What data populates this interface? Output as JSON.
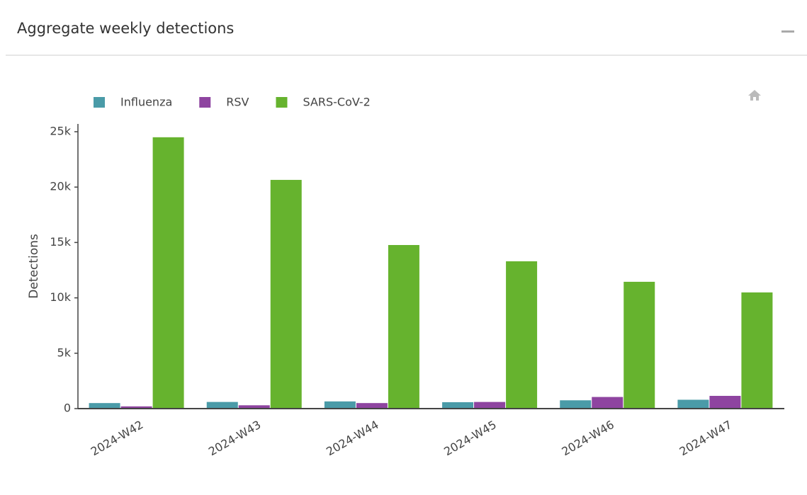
{
  "header": {
    "title": "Aggregate weekly detections"
  },
  "chart_data": {
    "type": "bar",
    "categories": [
      "2024-W42",
      "2024-W43",
      "2024-W44",
      "2024-W45",
      "2024-W46",
      "2024-W47"
    ],
    "series": [
      {
        "name": "Influenza",
        "color": "#4a9ba8",
        "values": [
          500,
          600,
          650,
          580,
          750,
          800
        ]
      },
      {
        "name": "RSV",
        "color": "#8e44a0",
        "values": [
          200,
          300,
          500,
          600,
          1050,
          1150
        ]
      },
      {
        "name": "SARS-CoV-2",
        "color": "#66b32e",
        "values": [
          24500,
          20650,
          14770,
          13300,
          11450,
          10490
        ]
      }
    ],
    "ylabel": "Detections",
    "ylim": [
      0,
      25700
    ],
    "yticks": [
      0,
      {
        "value": 5000,
        "label": "5k"
      },
      {
        "value": 10000,
        "label": "10k"
      },
      {
        "value": 15000,
        "label": "15k"
      },
      {
        "value": 20000,
        "label": "20k"
      },
      {
        "value": 25000,
        "label": "25k"
      }
    ],
    "legend": "top-left"
  }
}
